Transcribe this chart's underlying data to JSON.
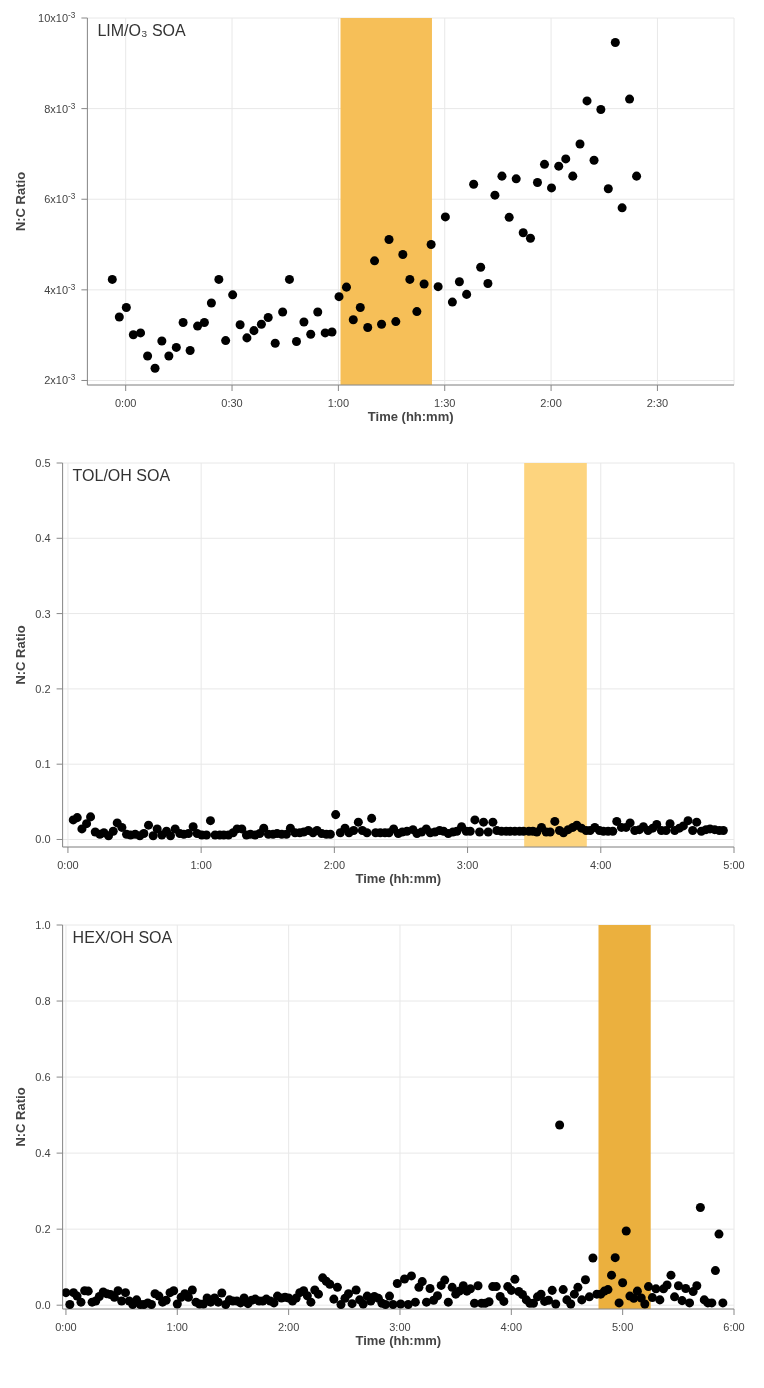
{
  "chart_data": [
    {
      "type": "scatter",
      "title": "LIM/O₃ SOA",
      "xlabel": "Time (hh:mm)",
      "ylabel": "N:C Ratio",
      "color": "#000000",
      "marker": "circle",
      "grid": true,
      "x": [
        -0.063,
        -0.03,
        0.003,
        0.036,
        0.07,
        0.103,
        0.138,
        0.17,
        0.203,
        0.238,
        0.27,
        0.303,
        0.338,
        0.37,
        0.403,
        0.438,
        0.47,
        0.503,
        0.538,
        0.57,
        0.603,
        0.638,
        0.67,
        0.703,
        0.738,
        0.77,
        0.803,
        0.838,
        0.87,
        0.903,
        0.938,
        0.97,
        1.003,
        1.038,
        1.07,
        1.103,
        1.138,
        1.17,
        1.203,
        1.238,
        1.27,
        1.303,
        1.336,
        1.369,
        1.403,
        1.436,
        1.469,
        1.503,
        1.536,
        1.569,
        1.603,
        1.636,
        1.669,
        1.703,
        1.736,
        1.769,
        1.803,
        1.836,
        1.869,
        1.903,
        1.936,
        1.969,
        2.002,
        2.036,
        2.069,
        2.102,
        2.136,
        2.169,
        2.202,
        2.234,
        2.269,
        2.302,
        2.334,
        2.369,
        2.402
      ],
      "values": [
        0.00423,
        0.0034,
        0.00361,
        0.00301,
        0.00305,
        0.00254,
        0.00227,
        0.00287,
        0.00254,
        0.00273,
        0.00328,
        0.00266,
        0.0032,
        0.00328,
        0.00371,
        0.00423,
        0.00288,
        0.00389,
        0.00323,
        0.00294,
        0.0031,
        0.00324,
        0.00339,
        0.00282,
        0.00351,
        0.00423,
        0.00286,
        0.00329,
        0.00302,
        0.00351,
        0.00305,
        0.00307,
        0.00385,
        0.00406,
        0.00334,
        0.00361,
        0.00317,
        0.00464,
        0.00324,
        0.00511,
        0.0033,
        0.00478,
        0.00423,
        0.00352,
        0.00413,
        0.005,
        0.00407,
        0.00561,
        0.00373,
        0.00418,
        0.0039,
        0.00633,
        0.0045,
        0.00414,
        0.00609,
        0.00651,
        0.0056,
        0.00645,
        0.00526,
        0.00514,
        0.00637,
        0.00677,
        0.00625,
        0.00673,
        0.00689,
        0.00651,
        0.00722,
        0.00817,
        0.00686,
        0.00798,
        0.00623,
        0.00946,
        0.00581,
        0.00821,
        0.00651
      ],
      "xlim": [
        -0.18,
        2.86
      ],
      "xticks": [
        {
          "value": 0,
          "label": "0:00"
        },
        {
          "value": 0.5,
          "label": "0:30"
        },
        {
          "value": 1,
          "label": "1:00"
        },
        {
          "value": 1.5,
          "label": "1:30"
        },
        {
          "value": 2,
          "label": "2:00"
        },
        {
          "value": 2.5,
          "label": "2:30"
        }
      ],
      "ylim": [
        0.0019,
        0.01
      ],
      "yticks": [
        {
          "value": 0.002,
          "label": "2x10$^{-3}$"
        },
        {
          "value": 0.004,
          "label": "4x10$^{-3}$"
        },
        {
          "value": 0.006,
          "label": "6x10$^{-3}$"
        },
        {
          "value": 0.008,
          "label": "8x10$^{-3}$"
        },
        {
          "value": 0.01,
          "label": "10x10$^{-3}$"
        }
      ],
      "bands": [
        {
          "axis": "x",
          "from": 1.01,
          "to": 1.44,
          "color": "#f6bf58"
        }
      ]
    },
    {
      "type": "scatter",
      "title": "TOL/OH SOA",
      "xlabel": "Time (hh:mm)",
      "ylabel": "N:C Ratio",
      "color": "#000000",
      "marker": "circle",
      "grid": true,
      "x": [
        0.04,
        0.07,
        0.105,
        0.14,
        0.17,
        0.205,
        0.24,
        0.27,
        0.305,
        0.34,
        0.37,
        0.405,
        0.44,
        0.47,
        0.505,
        0.54,
        0.57,
        0.605,
        0.64,
        0.67,
        0.705,
        0.74,
        0.77,
        0.805,
        0.84,
        0.87,
        0.905,
        0.94,
        0.97,
        1.005,
        1.04,
        1.07,
        1.105,
        1.14,
        1.17,
        1.205,
        1.24,
        1.27,
        1.305,
        1.34,
        1.37,
        1.405,
        1.44,
        1.47,
        1.505,
        1.54,
        1.57,
        1.605,
        1.64,
        1.67,
        1.705,
        1.74,
        1.77,
        1.805,
        1.84,
        1.87,
        1.905,
        1.94,
        1.97,
        2.01,
        2.045,
        2.08,
        2.11,
        2.145,
        2.18,
        2.21,
        2.245,
        2.28,
        2.31,
        2.345,
        2.38,
        2.41,
        2.445,
        2.48,
        2.51,
        2.545,
        2.59,
        2.62,
        2.655,
        2.69,
        2.72,
        2.755,
        2.79,
        2.82,
        2.855,
        2.89,
        2.92,
        2.955,
        2.99,
        3.02,
        3.055,
        3.09,
        3.12,
        3.155,
        3.19,
        3.22,
        3.255,
        3.29,
        3.32,
        3.355,
        3.39,
        3.42,
        3.46,
        3.49,
        3.52,
        3.555,
        3.59,
        3.62,
        3.655,
        3.69,
        3.72,
        3.755,
        3.79,
        3.82,
        3.855,
        3.89,
        3.92,
        3.955,
        3.99,
        4.02,
        4.055,
        4.09,
        4.12,
        4.155,
        4.19,
        4.22,
        4.255,
        4.29,
        4.32,
        4.355,
        4.39,
        4.42,
        4.455,
        4.49,
        4.52,
        4.555,
        4.59,
        4.62,
        4.655,
        4.69,
        4.72,
        4.755,
        4.79,
        4.82,
        4.855,
        4.89,
        4.92
      ],
      "values": [
        0.026,
        0.029,
        0.014,
        0.021,
        0.03,
        0.01,
        0.007,
        0.009,
        0.005,
        0.011,
        0.022,
        0.016,
        0.007,
        0.006,
        0.007,
        0.005,
        0.008,
        0.019,
        0.005,
        0.014,
        0.006,
        0.011,
        0.005,
        0.014,
        0.008,
        0.007,
        0.008,
        0.017,
        0.008,
        0.006,
        0.006,
        0.025,
        0.006,
        0.006,
        0.006,
        0.006,
        0.009,
        0.014,
        0.014,
        0.006,
        0.007,
        0.006,
        0.008,
        0.015,
        0.007,
        0.007,
        0.008,
        0.007,
        0.007,
        0.015,
        0.009,
        0.009,
        0.01,
        0.012,
        0.009,
        0.012,
        0.008,
        0.007,
        0.007,
        0.033,
        0.009,
        0.015,
        0.009,
        0.012,
        0.023,
        0.012,
        0.009,
        0.028,
        0.009,
        0.009,
        0.009,
        0.009,
        0.014,
        0.008,
        0.01,
        0.011,
        0.013,
        0.008,
        0.01,
        0.014,
        0.009,
        0.01,
        0.012,
        0.011,
        0.008,
        0.01,
        0.011,
        0.017,
        0.011,
        0.011,
        0.026,
        0.01,
        0.023,
        0.01,
        0.023,
        0.012,
        0.011,
        0.011,
        0.011,
        0.011,
        0.011,
        0.011,
        0.011,
        0.011,
        0.01,
        0.016,
        0.01,
        0.01,
        0.024,
        0.012,
        0.009,
        0.013,
        0.016,
        0.019,
        0.015,
        0.012,
        0.012,
        0.016,
        0.012,
        0.011,
        0.011,
        0.011,
        0.024,
        0.016,
        0.016,
        0.022,
        0.012,
        0.013,
        0.017,
        0.012,
        0.015,
        0.02,
        0.012,
        0.012,
        0.021,
        0.012,
        0.015,
        0.018,
        0.025,
        0.012,
        0.023,
        0.011,
        0.013,
        0.014,
        0.013,
        0.012,
        0.012
      ],
      "xlim": [
        -0.04,
        5
      ],
      "xticks": [
        {
          "value": 0,
          "label": "0:00"
        },
        {
          "value": 1,
          "label": "1:00"
        },
        {
          "value": 2,
          "label": "2:00"
        },
        {
          "value": 3,
          "label": "3:00"
        },
        {
          "value": 4,
          "label": "4:00"
        },
        {
          "value": 5,
          "label": "5:00"
        }
      ],
      "ylim": [
        -0.01,
        0.5
      ],
      "yticks": [
        {
          "value": 0,
          "label": "0.0"
        },
        0.1,
        0.2,
        0.3,
        0.4,
        0.5
      ],
      "bands": [
        {
          "axis": "x",
          "from": 3.425,
          "to": 3.895,
          "color": "#fdd47e"
        }
      ]
    },
    {
      "type": "scatter",
      "title": "HEX/OH SOA",
      "xlabel": "Time (hh:mm)",
      "ylabel": "N:C Ratio",
      "color": "#000000",
      "marker": "circle",
      "grid": true,
      "x": [
        0,
        0.035,
        0.068,
        0.1,
        0.135,
        0.168,
        0.2,
        0.235,
        0.268,
        0.3,
        0.335,
        0.368,
        0.4,
        0.435,
        0.468,
        0.5,
        0.535,
        0.568,
        0.6,
        0.635,
        0.668,
        0.7,
        0.735,
        0.768,
        0.8,
        0.835,
        0.868,
        0.9,
        0.935,
        0.968,
        1,
        1.035,
        1.068,
        1.1,
        1.135,
        1.168,
        1.2,
        1.235,
        1.268,
        1.3,
        1.335,
        1.368,
        1.4,
        1.435,
        1.468,
        1.5,
        1.535,
        1.568,
        1.6,
        1.635,
        1.668,
        1.7,
        1.735,
        1.768,
        1.8,
        1.835,
        1.868,
        1.9,
        1.935,
        1.968,
        2,
        2.035,
        2.068,
        2.1,
        2.135,
        2.168,
        2.2,
        2.235,
        2.268,
        2.306,
        2.338,
        2.37,
        2.406,
        2.438,
        2.47,
        2.506,
        2.538,
        2.57,
        2.606,
        2.638,
        2.67,
        2.706,
        2.738,
        2.77,
        2.806,
        2.838,
        2.87,
        2.906,
        2.938,
        2.976,
        3.006,
        3.041,
        3.074,
        3.103,
        3.138,
        3.17,
        3.2,
        3.238,
        3.27,
        3.302,
        3.337,
        3.37,
        3.402,
        3.434,
        3.469,
        3.501,
        3.534,
        3.569,
        3.601,
        3.633,
        3.669,
        3.701,
        3.733,
        3.765,
        3.8,
        3.833,
        3.865,
        3.9,
        3.933,
        3.968,
        4,
        4.032,
        4.067,
        4.1,
        4.135,
        4.167,
        4.199,
        4.235,
        4.267,
        4.299,
        4.334,
        4.367,
        4.399,
        4.434,
        4.466,
        4.499,
        4.534,
        4.566,
        4.598,
        4.633,
        4.666,
        4.701,
        4.733,
        4.768,
        4.803,
        4.836,
        4.868,
        4.9,
        4.933,
        4.968,
        5,
        5.032,
        5.065,
        5.1,
        5.132,
        5.167,
        5.199,
        5.232,
        5.267,
        5.299,
        5.334,
        5.367,
        5.399,
        5.434,
        5.466,
        5.501,
        5.534,
        5.566,
        5.601,
        5.633,
        5.666,
        5.698,
        5.733,
        5.765,
        5.801,
        5.833,
        5.865,
        5.9
      ],
      "values": [
        0.033,
        0.002,
        0.033,
        0.024,
        0.008,
        0.038,
        0.037,
        0.008,
        0.011,
        0.023,
        0.035,
        0.03,
        0.028,
        0.021,
        0.038,
        0.011,
        0.033,
        0.011,
        0.002,
        0.014,
        0.002,
        0.002,
        0.006,
        0.002,
        0.03,
        0.024,
        0.008,
        0.013,
        0.033,
        0.038,
        0.003,
        0.021,
        0.03,
        0.021,
        0.04,
        0.008,
        0.003,
        0.003,
        0.019,
        0.008,
        0.019,
        0.008,
        0.032,
        0.002,
        0.014,
        0.011,
        0.011,
        0.006,
        0.019,
        0.004,
        0.013,
        0.016,
        0.011,
        0.011,
        0.016,
        0.011,
        0.006,
        0.024,
        0.019,
        0.021,
        0.019,
        0.011,
        0.019,
        0.033,
        0.038,
        0.025,
        0.008,
        0.04,
        0.029,
        0.072,
        0.063,
        0.055,
        0.016,
        0.047,
        0.002,
        0.018,
        0.03,
        0.004,
        0.04,
        0.014,
        0.003,
        0.024,
        0.011,
        0.023,
        0.018,
        0.005,
        0.002,
        0.024,
        0.002,
        0.057,
        0.003,
        0.069,
        0.002,
        0.077,
        0.008,
        0.047,
        0.062,
        0.008,
        0.044,
        0.013,
        0.025,
        0.052,
        0.066,
        0.008,
        0.047,
        0.029,
        0.037,
        0.051,
        0.037,
        0.043,
        0.005,
        0.051,
        0.005,
        0.005,
        0.009,
        0.049,
        0.049,
        0.023,
        0.01,
        0.049,
        0.039,
        0.068,
        0.036,
        0.028,
        0.014,
        0.005,
        0.005,
        0.022,
        0.029,
        0.01,
        0.013,
        0.039,
        0.003,
        0.474,
        0.041,
        0.014,
        0.003,
        0.029,
        0.047,
        0.014,
        0.067,
        0.022,
        0.124,
        0.029,
        0.029,
        0.037,
        0.041,
        0.079,
        0.125,
        0.006,
        0.059,
        0.195,
        0.024,
        0.018,
        0.037,
        0.019,
        0.003,
        0.049,
        0.02,
        0.043,
        0.014,
        0.043,
        0.053,
        0.079,
        0.022,
        0.051,
        0.012,
        0.044,
        0.006,
        0.036,
        0.051,
        0.257,
        0.014,
        0.006,
        0.006,
        0.091,
        0.187,
        0.006
      ],
      "xlim": [
        -0.03,
        6
      ],
      "xticks": [
        {
          "value": 0,
          "label": "0:00"
        },
        {
          "value": 1,
          "label": "1:00"
        },
        {
          "value": 2,
          "label": "2:00"
        },
        {
          "value": 3,
          "label": "3:00"
        },
        {
          "value": 4,
          "label": "4:00"
        },
        {
          "value": 5,
          "label": "5:00"
        },
        {
          "value": 6,
          "label": "6:00"
        }
      ],
      "ylim": [
        -0.01,
        1
      ],
      "yticks": [
        {
          "value": 0,
          "label": "0.0"
        },
        0.2,
        0.4,
        0.6,
        0.8,
        {
          "value": 1,
          "label": "1.0"
        }
      ],
      "bands": [
        {
          "axis": "x",
          "from": 4.783,
          "to": 5.252,
          "color": "#ebb03e"
        }
      ]
    }
  ]
}
